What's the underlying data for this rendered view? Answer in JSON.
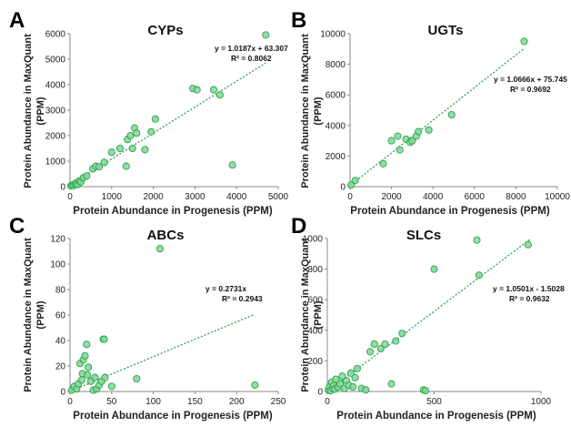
{
  "figure": {
    "panels": [
      {
        "letter": "A",
        "title": "CYPs",
        "xlabel": "Protein Abundance in Progenesis (PPM)",
        "ylabel": "Protein Abundance in MaxQuant (PPM)",
        "equation": "y = 1.0187x + 63.307",
        "r2": "R² = 0.8062"
      },
      {
        "letter": "B",
        "title": "UGTs",
        "xlabel": "Protein Abundance in Progenesis (PPM)",
        "ylabel": "Protein Abundance in MaxQuant (PPM)",
        "equation": "y = 1.0666x + 75.745",
        "r2": "R² = 0.9692"
      },
      {
        "letter": "C",
        "title": "ABCs",
        "xlabel": "Protein Abundance in Progenesis (PPM)",
        "ylabel": "Protein Abundance in MaxQuant (PPM)",
        "equation": "y = 0.2731x",
        "r2": "R² = 0.2943"
      },
      {
        "letter": "D",
        "title": "SLCs",
        "xlabel": "Protein Abundance in Progenesis (PPM)",
        "ylabel": "Protein Abundance in MaxQuant (PPM)",
        "equation": "y = 1.0501x - 1.5028",
        "r2": "R² = 0.9632"
      }
    ]
  },
  "colors": {
    "point_fill": "#7ed895",
    "point_stroke": "#2e9e4f",
    "trendline": "#3aa55a"
  },
  "chart_data": [
    {
      "type": "scatter",
      "title": "CYPs",
      "xlabel": "Protein Abundance in Progenesis (PPM)",
      "ylabel": "Protein Abundance in MaxQuant (PPM)",
      "xlim": [
        0,
        5000
      ],
      "ylim": [
        0,
        6000
      ],
      "xticks": [
        0,
        1000,
        2000,
        3000,
        4000,
        5000
      ],
      "yticks": [
        0,
        1000,
        2000,
        3000,
        4000,
        5000,
        6000
      ],
      "trendline": {
        "slope": 1.0187,
        "intercept": 63.307,
        "x_range": [
          0,
          4700
        ]
      },
      "x": [
        20,
        50,
        80,
        120,
        150,
        180,
        220,
        260,
        320,
        400,
        550,
        620,
        700,
        820,
        1000,
        1200,
        1350,
        1380,
        1450,
        1500,
        1550,
        1600,
        1800,
        1950,
        2050,
        2950,
        3050,
        3450,
        3600,
        3900,
        4700
      ],
      "y": [
        30,
        60,
        40,
        100,
        150,
        80,
        220,
        180,
        350,
        420,
        700,
        800,
        780,
        950,
        1350,
        1500,
        800,
        1850,
        2000,
        1500,
        2300,
        2100,
        1450,
        2150,
        2650,
        3850,
        3800,
        3800,
        3600,
        850,
        5950
      ]
    },
    {
      "type": "scatter",
      "title": "UGTs",
      "xlabel": "Protein Abundance in Progenesis (PPM)",
      "ylabel": "Protein Abundance in MaxQuant (PPM)",
      "xlim": [
        0,
        10000
      ],
      "ylim": [
        0,
        10000
      ],
      "xticks": [
        0,
        2000,
        4000,
        6000,
        8000,
        10000
      ],
      "yticks": [
        0,
        2000,
        4000,
        6000,
        8000,
        10000
      ],
      "trendline": {
        "slope": 1.0666,
        "intercept": 75.745,
        "x_range": [
          0,
          8400
        ]
      },
      "x": [
        50,
        250,
        1600,
        2000,
        2300,
        2400,
        2700,
        2900,
        3000,
        3200,
        3300,
        3800,
        4900,
        8400
      ],
      "y": [
        100,
        400,
        1500,
        3000,
        3300,
        2400,
        3100,
        2900,
        3000,
        3300,
        3600,
        3700,
        4700,
        9500
      ]
    },
    {
      "type": "scatter",
      "title": "ABCs",
      "xlabel": "Protein Abundance in Progenesis (PPM)",
      "ylabel": "Protein Abundance in MaxQuant (PPM)",
      "xlim": [
        0,
        250
      ],
      "ylim": [
        0,
        120
      ],
      "xticks": [
        0,
        50,
        100,
        150,
        200,
        250
      ],
      "yticks": [
        0,
        20,
        40,
        60,
        80,
        100,
        120
      ],
      "trendline": {
        "slope": 0.2731,
        "intercept": 0,
        "x_range": [
          0,
          220
        ]
      },
      "x": [
        2,
        5,
        8,
        10,
        12,
        14,
        15,
        16,
        18,
        20,
        21,
        22,
        25,
        28,
        30,
        32,
        35,
        38,
        40,
        41,
        42,
        50,
        80,
        108,
        222
      ],
      "y": [
        1,
        4,
        2,
        6,
        22,
        9,
        14,
        25,
        28,
        37,
        13,
        19,
        8,
        1,
        11,
        2,
        5,
        8,
        41,
        41,
        11,
        4,
        10,
        112,
        5
      ]
    },
    {
      "type": "scatter",
      "title": "SLCs",
      "xlabel": "Protein Abundance in Progenesis (PPM)",
      "ylabel": "Protein Abundance in MaxQuant (PPM)",
      "xlim": [
        0,
        1000
      ],
      "ylim": [
        0,
        1000
      ],
      "xticks": [
        0,
        500,
        1000
      ],
      "yticks": [
        0,
        200,
        400,
        600,
        800,
        1000
      ],
      "trendline": {
        "slope": 1.0501,
        "intercept": -1.5028,
        "x_range": [
          0,
          950
        ]
      },
      "x": [
        5,
        10,
        15,
        20,
        25,
        30,
        35,
        40,
        50,
        60,
        70,
        80,
        90,
        100,
        110,
        120,
        130,
        140,
        160,
        180,
        200,
        220,
        250,
        270,
        300,
        320,
        350,
        450,
        460,
        500,
        700,
        710,
        940
      ],
      "y": [
        10,
        30,
        5,
        60,
        20,
        40,
        15,
        80,
        30,
        50,
        100,
        20,
        70,
        40,
        120,
        30,
        90,
        150,
        20,
        10,
        260,
        310,
        280,
        310,
        50,
        330,
        380,
        10,
        5,
        800,
        990,
        760,
        960
      ]
    }
  ]
}
